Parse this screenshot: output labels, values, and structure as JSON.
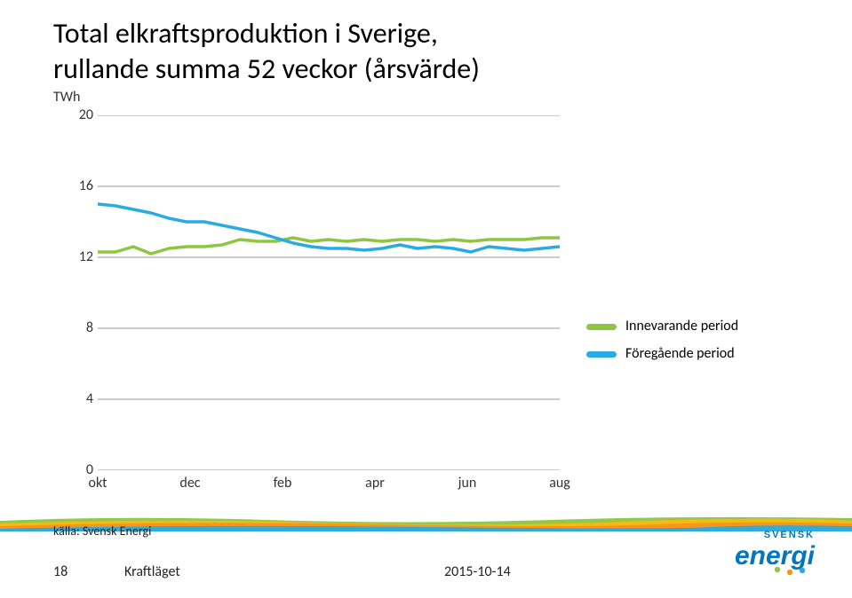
{
  "title_line1": "Total elkraftsproduktion i Sverige,",
  "title_line2": "rullande summa 52 veckor (årsvärde)",
  "chart": {
    "type": "line",
    "y_unit": "TWh",
    "x_categories": [
      "okt",
      "dec",
      "feb",
      "apr",
      "jun",
      "aug"
    ],
    "y_ticks": [
      0,
      4,
      8,
      12,
      16,
      20
    ],
    "ylim": [
      0,
      20
    ],
    "grid_color": "#969696",
    "grid_width": 1,
    "background_color": "#ffffff",
    "line_width": 3.5,
    "tick_fontsize": 16,
    "series": [
      {
        "name": "Innevarande period",
        "color": "#8dc63f",
        "values": [
          12.3,
          12.3,
          12.6,
          12.2,
          12.5,
          12.6,
          12.6,
          12.7,
          13.0,
          12.9,
          12.9,
          13.1,
          12.9,
          13.0,
          12.9,
          13.0,
          12.9,
          13.0,
          13.0,
          12.9,
          13.0,
          12.9,
          13.0,
          13.0,
          13.0,
          13.1,
          13.1
        ]
      },
      {
        "name": "Föregående period",
        "color": "#29abe2",
        "values": [
          15.0,
          14.9,
          14.7,
          14.5,
          14.2,
          14.0,
          14.0,
          13.8,
          13.6,
          13.4,
          13.1,
          12.8,
          12.6,
          12.5,
          12.5,
          12.4,
          12.5,
          12.7,
          12.5,
          12.6,
          12.5,
          12.3,
          12.6,
          12.5,
          12.4,
          12.5,
          12.6
        ]
      }
    ]
  },
  "legend": {
    "items": [
      {
        "label": "Innevarande period",
        "color": "#8dc63f"
      },
      {
        "label": "Föregående period",
        "color": "#29abe2"
      }
    ]
  },
  "footer": {
    "source": "källa: Svensk Energi",
    "page_number": "18",
    "report_title": "Kraftläget",
    "date": "2015-10-14"
  },
  "logo": {
    "top_text": "SVENSK",
    "main_text": "energi",
    "top_color": "#0077be",
    "main_color": "#0077be",
    "dots": [
      "#8dc63f",
      "#f7941d",
      "#29abe2"
    ]
  },
  "stripes": {
    "colors": [
      "#8dc63f",
      "#fdb813",
      "#f7941d",
      "#29abe2"
    ],
    "height": 14
  }
}
